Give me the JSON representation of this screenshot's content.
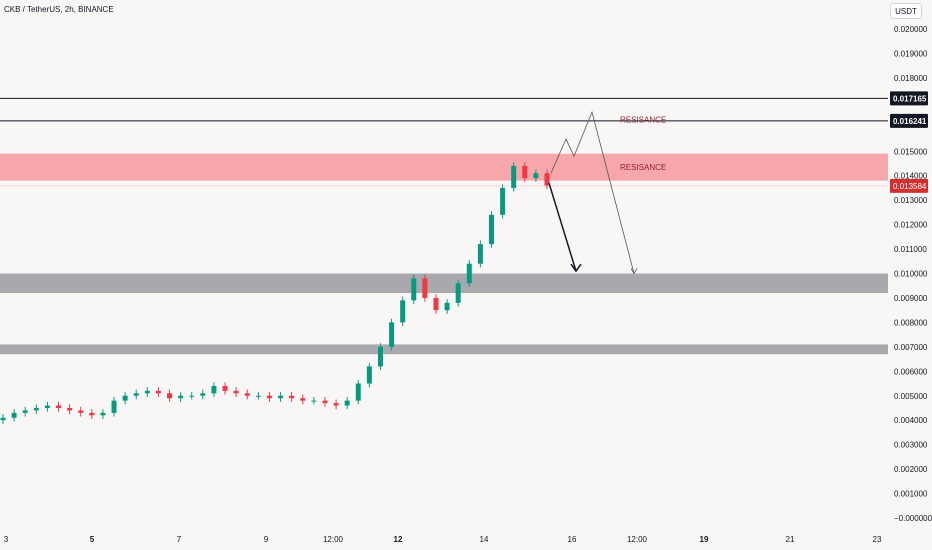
{
  "header": {
    "title": "CKB / TetherUS, 2h, BINANCE",
    "currency": "USDT"
  },
  "colors": {
    "background": "#f8f7f6",
    "up": "#089981",
    "down": "#f23645",
    "resistance_zone": "#f7a6aa",
    "support_zone": "#a9a9ad",
    "price_label_bg": "#131722",
    "last_price_bg": "#d32f2f",
    "annotation_text": "#8b2332"
  },
  "chart_data": {
    "type": "candlestick",
    "y_axis": {
      "min": 0,
      "max": 0.02,
      "ticks": [
        "0.020000",
        "0.019000",
        "0.018000",
        "0.017000",
        "0.016000",
        "0.015000",
        "0.014000",
        "0.013000",
        "0.012000",
        "0.011000",
        "0.010000",
        "0.009000",
        "0.008000",
        "0.007000",
        "0.006000",
        "0.005000",
        "0.004000",
        "0.003000",
        "0.002000",
        "0.001000",
        "−0.000000"
      ],
      "tick_values": [
        0.02,
        0.019,
        0.018,
        0.017,
        0.016,
        0.015,
        0.014,
        0.013,
        0.012,
        0.011,
        0.01,
        0.009,
        0.008,
        0.007,
        0.006,
        0.005,
        0.004,
        0.003,
        0.002,
        0.001,
        0
      ]
    },
    "x_axis": {
      "ticks": [
        {
          "label": "3",
          "bold": false
        },
        {
          "label": "5",
          "bold": true
        },
        {
          "label": "7",
          "bold": false
        },
        {
          "label": "9",
          "bold": false
        },
        {
          "label": "12:00",
          "bold": false
        },
        {
          "label": "12",
          "bold": true
        },
        {
          "label": "14",
          "bold": false
        },
        {
          "label": "16",
          "bold": false
        },
        {
          "label": "12:00",
          "bold": false
        },
        {
          "label": "19",
          "bold": true
        },
        {
          "label": "21",
          "bold": false
        },
        {
          "label": "23",
          "bold": false
        }
      ]
    },
    "horizontal_lines": [
      {
        "value": 0.017165,
        "label": "0.017165"
      },
      {
        "value": 0.016241,
        "label": "0.016241"
      }
    ],
    "last_price": {
      "value": 0.013584,
      "label": "0.013584"
    },
    "zones": [
      {
        "kind": "resistance",
        "top": 0.0149,
        "bottom": 0.0138,
        "label": "RESISANCE"
      },
      {
        "kind": "support",
        "top": 0.01,
        "bottom": 0.0092,
        "label": ""
      },
      {
        "kind": "support",
        "top": 0.0071,
        "bottom": 0.0067,
        "label": ""
      }
    ],
    "annotations": [
      {
        "text": "RESISANCE",
        "near_value": 0.0163
      }
    ],
    "price_path": [
      [
        0.004,
        0.0041
      ],
      [
        0.0041,
        0.0043
      ],
      [
        0.0043,
        0.0044
      ],
      [
        0.0044,
        0.0045
      ],
      [
        0.0045,
        0.0046
      ],
      [
        0.0046,
        0.0045
      ],
      [
        0.0045,
        0.0044
      ],
      [
        0.0044,
        0.0043
      ],
      [
        0.0043,
        0.0042
      ],
      [
        0.0042,
        0.0043
      ],
      [
        0.0043,
        0.0048
      ],
      [
        0.0048,
        0.005
      ],
      [
        0.005,
        0.0051
      ],
      [
        0.0051,
        0.0052
      ],
      [
        0.0052,
        0.0051
      ],
      [
        0.0051,
        0.0049
      ],
      [
        0.0049,
        0.005
      ],
      [
        0.005,
        0.005
      ],
      [
        0.005,
        0.0051
      ],
      [
        0.0051,
        0.0054
      ],
      [
        0.0054,
        0.0052
      ],
      [
        0.0052,
        0.0051
      ],
      [
        0.0051,
        0.005
      ],
      [
        0.005,
        0.005
      ],
      [
        0.005,
        0.0049
      ],
      [
        0.0049,
        0.005
      ],
      [
        0.005,
        0.0049
      ],
      [
        0.0049,
        0.0048
      ],
      [
        0.0048,
        0.0048
      ],
      [
        0.0048,
        0.0047
      ],
      [
        0.0047,
        0.0046
      ],
      [
        0.0046,
        0.0048
      ],
      [
        0.0048,
        0.0055
      ],
      [
        0.0055,
        0.0062
      ],
      [
        0.0062,
        0.007
      ],
      [
        0.007,
        0.008
      ],
      [
        0.008,
        0.0089
      ],
      [
        0.0089,
        0.0098
      ],
      [
        0.0098,
        0.009
      ],
      [
        0.009,
        0.0085
      ],
      [
        0.0085,
        0.0088
      ],
      [
        0.0088,
        0.0096
      ],
      [
        0.0096,
        0.0104
      ],
      [
        0.0104,
        0.0112
      ],
      [
        0.0112,
        0.0124
      ],
      [
        0.0124,
        0.0135
      ],
      [
        0.0135,
        0.0144
      ],
      [
        0.0144,
        0.0139
      ],
      [
        0.0139,
        0.0141
      ],
      [
        0.0141,
        0.0136
      ]
    ],
    "projections": [
      {
        "style": "thick-arrow",
        "from": [
          0.0137
        ],
        "to": [
          0.0101
        ]
      },
      {
        "style": "thin-zigzag",
        "points": [
          0.0141,
          0.0155,
          0.0148,
          0.0166,
          0.01
        ]
      }
    ]
  }
}
